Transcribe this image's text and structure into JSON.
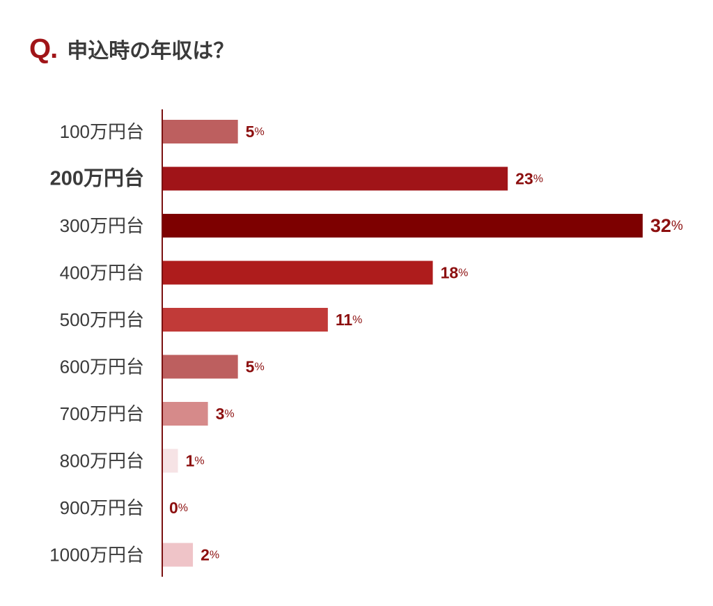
{
  "header": {
    "q_mark": "Q.",
    "question": "申込時の年収は？"
  },
  "chart_data": {
    "type": "bar",
    "orientation": "horizontal",
    "title": "申込時の年収は？",
    "categories": [
      "100万円台",
      "200万円台",
      "300万円台",
      "400万円台",
      "500万円台",
      "600万円台",
      "700万円台",
      "800万円台",
      "900万円台",
      "1000万円台"
    ],
    "values": [
      5,
      23,
      32,
      18,
      11,
      5,
      3,
      1,
      0,
      2
    ],
    "value_labels": [
      "5",
      "23",
      "32",
      "18",
      "11",
      "5",
      "3",
      "1",
      "0",
      "2"
    ],
    "unit": "%",
    "bar_colors": [
      "#bd5f5f",
      "#a01418",
      "#7d0000",
      "#ae1c1c",
      "#c13a38",
      "#bd5f5f",
      "#d68a8a",
      "#f6e3e5",
      "#ffffff",
      "#efc4c8"
    ],
    "emphasized_category_index": 1,
    "axis_color": "#7a1010",
    "xlim": [
      0,
      32
    ],
    "grid": false,
    "legend": "none"
  }
}
